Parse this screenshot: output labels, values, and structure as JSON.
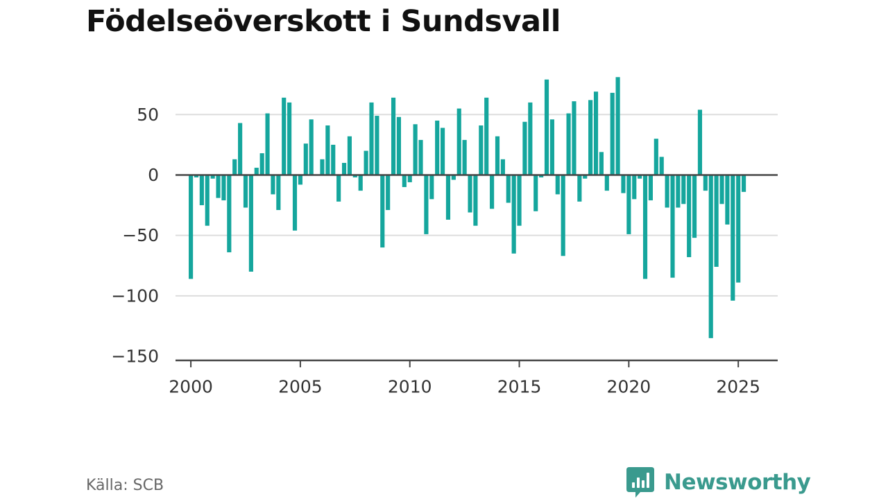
{
  "colors": {
    "bar": "#15a69d",
    "grid": "#dddddd",
    "zero_line": "#444444",
    "brand": "#3a9a8e"
  },
  "footer": {
    "source": "Källa: SCB",
    "brand_name": "Newsworthy",
    "brand_icon": "bar-chart-speech-bubble-icon"
  },
  "chart_data": {
    "type": "bar",
    "title": "Födelseöverskott i Sundsvall",
    "xlabel": "",
    "ylabel": "",
    "ylim": [
      -150,
      80
    ],
    "yticks": [
      50,
      0,
      -50,
      -100,
      -150
    ],
    "ytick_labels": [
      "50",
      "0",
      "−50",
      "−100",
      "−150"
    ],
    "xlim": [
      1999.3,
      2026.8
    ],
    "xticks": [
      2000,
      2005,
      2010,
      2015,
      2020,
      2025
    ],
    "xtick_labels": [
      "2000",
      "2005",
      "2010",
      "2015",
      "2020",
      "2025"
    ],
    "grid": true,
    "frequency": "quarterly",
    "x": [
      "2000-Q1",
      "2000-Q2",
      "2000-Q3",
      "2000-Q4",
      "2001-Q1",
      "2001-Q2",
      "2001-Q3",
      "2001-Q4",
      "2002-Q1",
      "2002-Q2",
      "2002-Q3",
      "2002-Q4",
      "2003-Q1",
      "2003-Q2",
      "2003-Q3",
      "2003-Q4",
      "2004-Q1",
      "2004-Q2",
      "2004-Q3",
      "2004-Q4",
      "2005-Q1",
      "2005-Q2",
      "2005-Q3",
      "2005-Q4",
      "2006-Q1",
      "2006-Q2",
      "2006-Q3",
      "2006-Q4",
      "2007-Q1",
      "2007-Q2",
      "2007-Q3",
      "2007-Q4",
      "2008-Q1",
      "2008-Q2",
      "2008-Q3",
      "2008-Q4",
      "2009-Q1",
      "2009-Q2",
      "2009-Q3",
      "2009-Q4",
      "2010-Q1",
      "2010-Q2",
      "2010-Q3",
      "2010-Q4",
      "2011-Q1",
      "2011-Q2",
      "2011-Q3",
      "2011-Q4",
      "2012-Q1",
      "2012-Q2",
      "2012-Q3",
      "2012-Q4",
      "2013-Q1",
      "2013-Q2",
      "2013-Q3",
      "2013-Q4",
      "2014-Q1",
      "2014-Q2",
      "2014-Q3",
      "2014-Q4",
      "2015-Q1",
      "2015-Q2",
      "2015-Q3",
      "2015-Q4",
      "2016-Q1",
      "2016-Q2",
      "2016-Q3",
      "2016-Q4",
      "2017-Q1",
      "2017-Q2",
      "2017-Q3",
      "2017-Q4",
      "2018-Q1",
      "2018-Q2",
      "2018-Q3",
      "2018-Q4",
      "2019-Q1",
      "2019-Q2",
      "2019-Q3",
      "2019-Q4",
      "2020-Q1",
      "2020-Q2",
      "2020-Q3",
      "2020-Q4",
      "2021-Q1",
      "2021-Q2",
      "2021-Q3",
      "2021-Q4",
      "2022-Q1",
      "2022-Q2",
      "2022-Q3",
      "2022-Q4",
      "2023-Q1",
      "2023-Q2",
      "2023-Q3",
      "2023-Q4",
      "2024-Q1",
      "2024-Q2",
      "2024-Q3",
      "2024-Q4",
      "2025-Q1",
      "2025-Q2",
      "2025-Q3"
    ],
    "values": [
      -86,
      -2,
      -25,
      -42,
      -3,
      -19,
      -21,
      -64,
      13,
      43,
      -27,
      -80,
      6,
      18,
      51,
      -16,
      -29,
      64,
      60,
      -46,
      -8,
      26,
      46,
      0,
      13,
      41,
      25,
      -22,
      10,
      32,
      -2,
      -13,
      20,
      60,
      49,
      -60,
      -29,
      64,
      48,
      -10,
      -6,
      42,
      29,
      -49,
      -20,
      45,
      39,
      -37,
      -4,
      55,
      29,
      -31,
      -42,
      41,
      64,
      -28,
      32,
      13,
      -23,
      -65,
      -42,
      44,
      60,
      -30,
      -2,
      79,
      46,
      -16,
      -67,
      51,
      61,
      -22,
      -3,
      62,
      69,
      19,
      -13,
      68,
      81,
      -15,
      -49,
      -20,
      -3,
      -86,
      -21,
      30,
      15,
      -27,
      -85,
      -27,
      -24,
      -68,
      -52,
      54,
      -13,
      -135,
      -76,
      -24,
      -41,
      -104,
      -89,
      -14,
      0
    ]
  }
}
